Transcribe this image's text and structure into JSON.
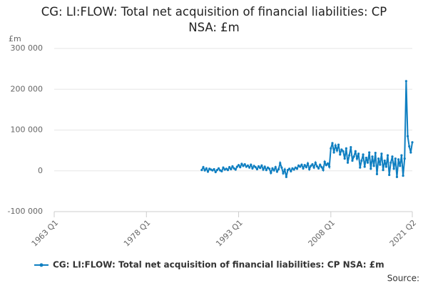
{
  "chart_data": {
    "type": "line",
    "title": "CG: LI:FLOW: Total net acquisition of financial liabilities: CP NSA: £m",
    "y_label": "£m",
    "source": "Source:",
    "categories": [
      "1963 Q1",
      null,
      null,
      null,
      null,
      null,
      null,
      null,
      null,
      null,
      null,
      null,
      null,
      null,
      null,
      null,
      null,
      null,
      null,
      null,
      null,
      null,
      null,
      null,
      null,
      null,
      null,
      null,
      null,
      null,
      null,
      null,
      null,
      null,
      null,
      null,
      null,
      null,
      null,
      null,
      null,
      null,
      null,
      null,
      null,
      null,
      null,
      null,
      null,
      null,
      null,
      null,
      null,
      null,
      null,
      null,
      null,
      null,
      null,
      null,
      "1978 Q1",
      null,
      null,
      null,
      null,
      null,
      null,
      null,
      null,
      null,
      null,
      null,
      null,
      null,
      null,
      null,
      null,
      null,
      null,
      null,
      null,
      null,
      null,
      null,
      null,
      null,
      null,
      null,
      null,
      null,
      null,
      null,
      null,
      null,
      null,
      null,
      null,
      null,
      null,
      null,
      null,
      null,
      null,
      null,
      null,
      null,
      null,
      null,
      null,
      null,
      null,
      null,
      null,
      null,
      null,
      null,
      null,
      null,
      null,
      null,
      "1993 Q1",
      null,
      null,
      null,
      null,
      null,
      null,
      null,
      null,
      null,
      null,
      null,
      null,
      null,
      null,
      null,
      null,
      null,
      null,
      null,
      null,
      null,
      null,
      null,
      null,
      null,
      null,
      null,
      null,
      null,
      null,
      null,
      null,
      null,
      null,
      null,
      null,
      null,
      null,
      null,
      null,
      null,
      null,
      null,
      null,
      null,
      null,
      null,
      null,
      null,
      null,
      null,
      null,
      null,
      null,
      null,
      null,
      null,
      null,
      null,
      "2008 Q1",
      null,
      null,
      null,
      null,
      null,
      null,
      null,
      null,
      null,
      null,
      null,
      null,
      null,
      null,
      null,
      null,
      null,
      null,
      null,
      null,
      null,
      null,
      null,
      null,
      null,
      null,
      null,
      null,
      null,
      null,
      null,
      null,
      null,
      null,
      null,
      null,
      null,
      null,
      null,
      null,
      null,
      null,
      null,
      null,
      null,
      null,
      null,
      null,
      null,
      null,
      null,
      null,
      "2021 Q2"
    ],
    "series": [
      {
        "name": "CG: LI:FLOW: Total net acquisition of financial liabilities: CP NSA: £m",
        "color": "#0f7fc1",
        "values": [
          null,
          null,
          null,
          null,
          null,
          null,
          null,
          null,
          null,
          null,
          null,
          null,
          null,
          null,
          null,
          null,
          null,
          null,
          null,
          null,
          null,
          null,
          null,
          null,
          null,
          null,
          null,
          null,
          null,
          null,
          null,
          null,
          null,
          null,
          null,
          null,
          null,
          null,
          null,
          null,
          null,
          null,
          null,
          null,
          null,
          null,
          null,
          null,
          null,
          null,
          null,
          null,
          null,
          null,
          null,
          null,
          null,
          null,
          null,
          null,
          null,
          null,
          null,
          null,
          null,
          null,
          null,
          null,
          null,
          null,
          null,
          null,
          null,
          null,
          null,
          null,
          null,
          null,
          null,
          null,
          null,
          null,
          null,
          null,
          null,
          null,
          null,
          null,
          null,
          null,
          null,
          null,
          null,
          null,
          null,
          null,
          2000,
          9000,
          1000,
          6000,
          -2000,
          5000,
          3000,
          1000,
          4000,
          -3000,
          2000,
          6000,
          1000,
          -1000,
          8000,
          3000,
          5000,
          2000,
          9000,
          4000,
          11000,
          6000,
          3000,
          10000,
          14000,
          9000,
          17000,
          12000,
          16000,
          10000,
          13000,
          8000,
          15000,
          6000,
          12000,
          9000,
          4000,
          11000,
          7000,
          13000,
          3000,
          10000,
          2000,
          8000,
          5000,
          -5000,
          6000,
          1000,
          9000,
          -2000,
          4000,
          19000,
          8000,
          -6000,
          3000,
          -15000,
          2000,
          5000,
          -1000,
          6000,
          3000,
          8000,
          5000,
          13000,
          10000,
          15000,
          6000,
          14000,
          9000,
          18000,
          4000,
          12000,
          16000,
          8000,
          20000,
          11000,
          6000,
          15000,
          9000,
          2000,
          22000,
          14000,
          18000,
          10000,
          55000,
          68000,
          45000,
          62000,
          50000,
          64000,
          40000,
          52000,
          48000,
          30000,
          55000,
          20000,
          38000,
          58000,
          25000,
          35000,
          48000,
          30000,
          42000,
          8000,
          25000,
          40000,
          10000,
          32000,
          20000,
          45000,
          5000,
          35000,
          12000,
          44000,
          -8000,
          30000,
          15000,
          42000,
          2000,
          25000,
          10000,
          38000,
          -10000,
          20000,
          35000,
          5000,
          30000,
          -15000,
          28000,
          12000,
          38000,
          -12000,
          30000,
          220000,
          85000,
          60000,
          45000,
          70000
        ]
      }
    ],
    "ylim": [
      -100000,
      300000
    ],
    "yticks": [
      {
        "value": -100000,
        "label": "-100 000"
      },
      0,
      {
        "value": 100000,
        "label": "100 000"
      },
      {
        "value": 200000,
        "label": "200 000"
      },
      {
        "value": 300000,
        "label": "300 000"
      }
    ],
    "grid": true
  }
}
